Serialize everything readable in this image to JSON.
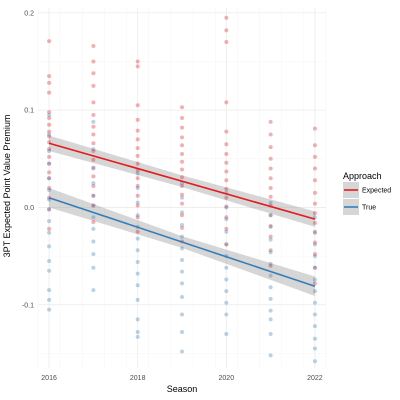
{
  "chart_data": {
    "type": "scatter",
    "title": "",
    "xlabel": "Season",
    "ylabel": "3PT Expected Point Value Premium",
    "xlim": [
      2015.75,
      2022.25
    ],
    "ylim": [
      -0.165,
      0.205
    ],
    "x_ticks": [
      2016,
      2018,
      2020,
      2022
    ],
    "y_ticks": [
      -0.1,
      0,
      0.1,
      0.2
    ],
    "y_tick_labels": [
      "-0.1",
      "0.0",
      "0.1",
      "0.2"
    ],
    "grid": true,
    "legend": {
      "title": "Approach",
      "placement": "right"
    },
    "series": [
      {
        "name": "Expected",
        "color": "#e41a1c",
        "points": [
          [
            2016,
            0.171
          ],
          [
            2016,
            0.135
          ],
          [
            2016,
            0.128
          ],
          [
            2016,
            0.118
          ],
          [
            2016,
            0.098
          ],
          [
            2016,
            0.092
          ],
          [
            2016,
            0.085
          ],
          [
            2016,
            0.078
          ],
          [
            2016,
            0.073
          ],
          [
            2016,
            0.067
          ],
          [
            2016,
            0.06
          ],
          [
            2016,
            0.052
          ],
          [
            2016,
            0.045
          ],
          [
            2016,
            0.036
          ],
          [
            2016,
            0.03
          ],
          [
            2016,
            0.02
          ],
          [
            2016,
            0.01
          ],
          [
            2016,
            -0.002
          ],
          [
            2016,
            -0.022
          ],
          [
            2017,
            0.166
          ],
          [
            2017,
            0.15
          ],
          [
            2017,
            0.138
          ],
          [
            2017,
            0.125
          ],
          [
            2017,
            0.108
          ],
          [
            2017,
            0.095
          ],
          [
            2017,
            0.083
          ],
          [
            2017,
            0.075
          ],
          [
            2017,
            0.066
          ],
          [
            2017,
            0.058
          ],
          [
            2017,
            0.049
          ],
          [
            2017,
            0.041
          ],
          [
            2017,
            0.032
          ],
          [
            2017,
            0.022
          ],
          [
            2017,
            0.012
          ],
          [
            2017,
            0.002
          ],
          [
            2017,
            -0.015
          ],
          [
            2018,
            0.15
          ],
          [
            2018,
            0.145
          ],
          [
            2018,
            0.105
          ],
          [
            2018,
            0.09
          ],
          [
            2018,
            0.079
          ],
          [
            2018,
            0.07
          ],
          [
            2018,
            0.061
          ],
          [
            2018,
            0.053
          ],
          [
            2018,
            0.045
          ],
          [
            2018,
            0.038
          ],
          [
            2018,
            0.03
          ],
          [
            2018,
            0.022
          ],
          [
            2018,
            0.012
          ],
          [
            2018,
            0.002
          ],
          [
            2018,
            -0.01
          ],
          [
            2018,
            -0.025
          ],
          [
            2019,
            0.103
          ],
          [
            2019,
            0.092
          ],
          [
            2019,
            0.082
          ],
          [
            2019,
            0.072
          ],
          [
            2019,
            0.064
          ],
          [
            2019,
            0.055
          ],
          [
            2019,
            0.047
          ],
          [
            2019,
            0.039
          ],
          [
            2019,
            0.031
          ],
          [
            2019,
            0.022
          ],
          [
            2019,
            0.013
          ],
          [
            2019,
            0.004
          ],
          [
            2019,
            -0.008
          ],
          [
            2019,
            -0.021
          ],
          [
            2019,
            -0.035
          ],
          [
            2020,
            0.195
          ],
          [
            2020,
            0.182
          ],
          [
            2020,
            0.17
          ],
          [
            2020,
            0.108
          ],
          [
            2020,
            0.078
          ],
          [
            2020,
            0.065
          ],
          [
            2020,
            0.055
          ],
          [
            2020,
            0.046
          ],
          [
            2020,
            0.037
          ],
          [
            2020,
            0.028
          ],
          [
            2020,
            0.019
          ],
          [
            2020,
            0.01
          ],
          [
            2020,
            0.001
          ],
          [
            2020,
            -0.01
          ],
          [
            2020,
            -0.022
          ],
          [
            2020,
            -0.038
          ],
          [
            2021,
            0.088
          ],
          [
            2021,
            0.075
          ],
          [
            2021,
            0.062
          ],
          [
            2021,
            0.05
          ],
          [
            2021,
            0.04
          ],
          [
            2021,
            0.03
          ],
          [
            2021,
            0.02
          ],
          [
            2021,
            0.011
          ],
          [
            2021,
            0.002
          ],
          [
            2021,
            -0.008
          ],
          [
            2021,
            -0.019
          ],
          [
            2021,
            -0.03
          ],
          [
            2021,
            -0.044
          ],
          [
            2021,
            -0.06
          ],
          [
            2022,
            0.081
          ],
          [
            2022,
            0.064
          ],
          [
            2022,
            0.052
          ],
          [
            2022,
            0.04
          ],
          [
            2022,
            0.028
          ],
          [
            2022,
            0.015
          ],
          [
            2022,
            0.004
          ],
          [
            2022,
            -0.006
          ],
          [
            2022,
            -0.016
          ],
          [
            2022,
            -0.026
          ],
          [
            2022,
            -0.036
          ],
          [
            2022,
            -0.048
          ],
          [
            2022,
            -0.062
          ],
          [
            2022,
            -0.078
          ]
        ],
        "fit": {
          "x": [
            2016,
            2022
          ],
          "y": [
            0.066,
            -0.012
          ],
          "ci_halfwidth": [
            0.008,
            0.006,
            0.008
          ]
        }
      },
      {
        "name": "True",
        "color": "#377eb8",
        "points": [
          [
            2016,
            0.095
          ],
          [
            2016,
            0.075
          ],
          [
            2016,
            0.058
          ],
          [
            2016,
            0.045
          ],
          [
            2016,
            0.03
          ],
          [
            2016,
            0.018
          ],
          [
            2016,
            0.008
          ],
          [
            2016,
            -0.002
          ],
          [
            2016,
            -0.014
          ],
          [
            2016,
            -0.026
          ],
          [
            2016,
            -0.04
          ],
          [
            2016,
            -0.055
          ],
          [
            2016,
            -0.065
          ],
          [
            2016,
            -0.085
          ],
          [
            2016,
            -0.095
          ],
          [
            2016,
            -0.105
          ],
          [
            2017,
            0.088
          ],
          [
            2017,
            0.06
          ],
          [
            2017,
            0.04
          ],
          [
            2017,
            0.025
          ],
          [
            2017,
            0.012
          ],
          [
            2017,
            0.002
          ],
          [
            2017,
            -0.01
          ],
          [
            2017,
            -0.022
          ],
          [
            2017,
            -0.035
          ],
          [
            2017,
            -0.048
          ],
          [
            2017,
            -0.062
          ],
          [
            2017,
            -0.085
          ],
          [
            2018,
            0.035
          ],
          [
            2018,
            0.02
          ],
          [
            2018,
            0.005
          ],
          [
            2018,
            -0.008
          ],
          [
            2018,
            -0.02
          ],
          [
            2018,
            -0.032
          ],
          [
            2018,
            -0.044
          ],
          [
            2018,
            -0.056
          ],
          [
            2018,
            -0.068
          ],
          [
            2018,
            -0.08
          ],
          [
            2018,
            -0.095
          ],
          [
            2018,
            -0.115
          ],
          [
            2018,
            -0.128
          ],
          [
            2018,
            -0.133
          ],
          [
            2019,
            0.025
          ],
          [
            2019,
            0.01
          ],
          [
            2019,
            -0.005
          ],
          [
            2019,
            -0.018
          ],
          [
            2019,
            -0.03
          ],
          [
            2019,
            -0.042
          ],
          [
            2019,
            -0.054
          ],
          [
            2019,
            -0.066
          ],
          [
            2019,
            -0.078
          ],
          [
            2019,
            -0.092
          ],
          [
            2019,
            -0.11
          ],
          [
            2019,
            -0.128
          ],
          [
            2019,
            -0.148
          ],
          [
            2020,
            0.015
          ],
          [
            2020,
            0.0
          ],
          [
            2020,
            -0.012
          ],
          [
            2020,
            -0.025
          ],
          [
            2020,
            -0.038
          ],
          [
            2020,
            -0.05
          ],
          [
            2020,
            -0.062
          ],
          [
            2020,
            -0.074
          ],
          [
            2020,
            -0.086
          ],
          [
            2020,
            -0.098
          ],
          [
            2020,
            -0.11
          ],
          [
            2020,
            -0.13
          ],
          [
            2021,
            0.005
          ],
          [
            2021,
            -0.008
          ],
          [
            2021,
            -0.02
          ],
          [
            2021,
            -0.033
          ],
          [
            2021,
            -0.046
          ],
          [
            2021,
            -0.058
          ],
          [
            2021,
            -0.07
          ],
          [
            2021,
            -0.082
          ],
          [
            2021,
            -0.094
          ],
          [
            2021,
            -0.106
          ],
          [
            2021,
            -0.115
          ],
          [
            2021,
            -0.13
          ],
          [
            2021,
            -0.152
          ],
          [
            2022,
            -0.01
          ],
          [
            2022,
            -0.025
          ],
          [
            2022,
            -0.038
          ],
          [
            2022,
            -0.05
          ],
          [
            2022,
            -0.062
          ],
          [
            2022,
            -0.074
          ],
          [
            2022,
            -0.086
          ],
          [
            2022,
            -0.098
          ],
          [
            2022,
            -0.11
          ],
          [
            2022,
            -0.122
          ],
          [
            2022,
            -0.135
          ],
          [
            2022,
            -0.145
          ],
          [
            2022,
            -0.158
          ]
        ],
        "fit": {
          "x": [
            2016,
            2022
          ],
          "y": [
            0.01,
            -0.081
          ],
          "ci_halfwidth": [
            0.01,
            0.006,
            0.01
          ]
        }
      }
    ]
  },
  "style": {
    "panel_background": "#ffffff",
    "grid_major": "#ebebeb",
    "grid_minor": "#f5f5f5",
    "ci_fill": "#999999",
    "point_alpha": 0.35
  }
}
